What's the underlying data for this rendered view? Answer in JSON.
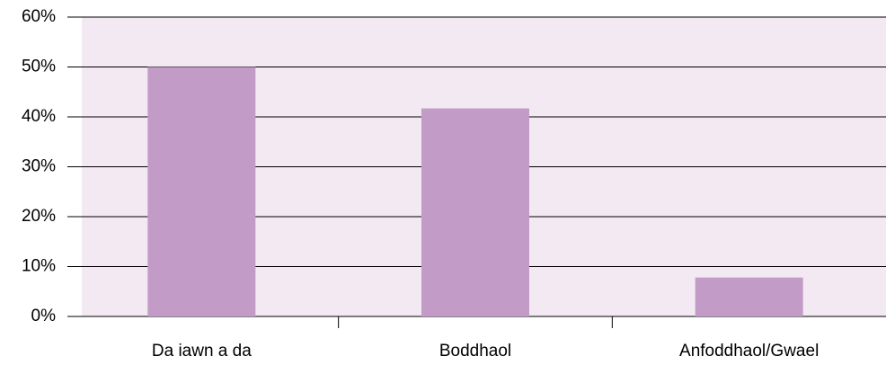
{
  "chart_data": {
    "type": "bar",
    "categories": [
      "Da iawn a da",
      "Boddhaol",
      "Anfoddhaol/Gwael"
    ],
    "values": [
      50,
      41.7,
      7.8
    ],
    "color": "#c39bc7",
    "background": "#f3e9f3",
    "ylim": [
      0,
      60
    ],
    "yticks": [
      {
        "value": 0,
        "label": "0%"
      },
      {
        "value": 10,
        "label": "10%"
      },
      {
        "value": 20,
        "label": "20%"
      },
      {
        "value": 30,
        "label": "30%"
      },
      {
        "value": 40,
        "label": "40%"
      },
      {
        "value": 50,
        "label": "50%"
      },
      {
        "value": 60,
        "label": "60%"
      }
    ],
    "grid": true
  }
}
